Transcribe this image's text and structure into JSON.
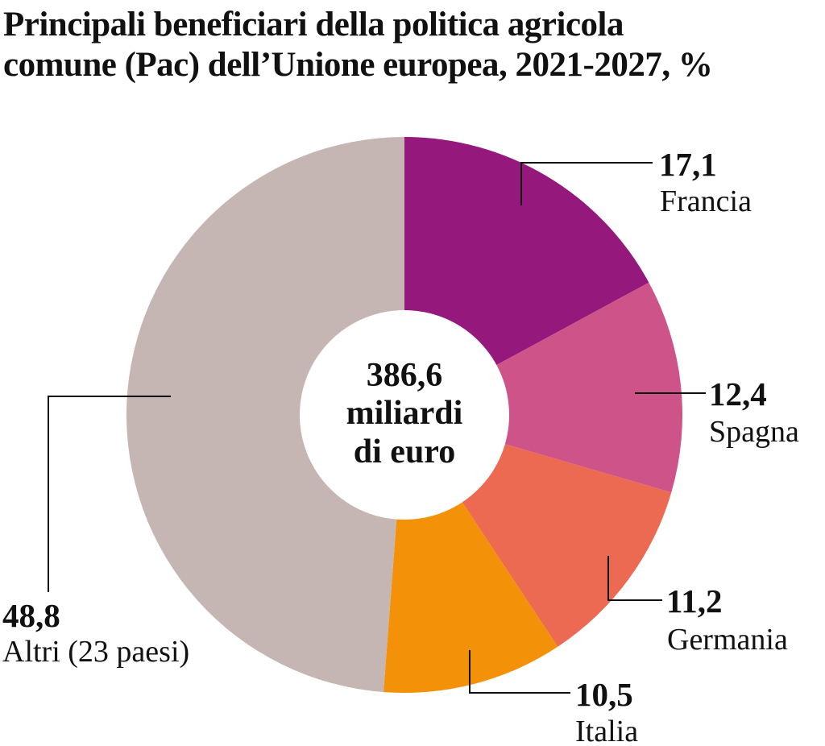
{
  "chart_data": {
    "type": "pie",
    "variant": "donut",
    "title": "Principali beneficiari della politica agricola comune (Pac) dell’Unione europea, 2021-2027, %",
    "title_lines": [
      "Principali beneficiari della politica agricola",
      "comune (Pac) dell’Unione europea, 2021-2027, %"
    ],
    "center_label": [
      "386,6",
      "miliardi",
      "di euro"
    ],
    "start": "top",
    "direction": "clockwise",
    "slices": [
      {
        "name": "Francia",
        "value": 17.1,
        "value_label": "17,1",
        "color": "#95187d"
      },
      {
        "name": "Spagna",
        "value": 12.4,
        "value_label": "12,4",
        "color": "#cd5388"
      },
      {
        "name": "Germania",
        "value": 11.2,
        "value_label": "11,2",
        "color": "#ec6a52"
      },
      {
        "name": "Italia",
        "value": 10.5,
        "value_label": "10,5",
        "color": "#f39109"
      },
      {
        "name": "Altri (23 paesi)",
        "value": 48.8,
        "value_label": "48,8",
        "color": "#c5b6b3"
      }
    ]
  }
}
